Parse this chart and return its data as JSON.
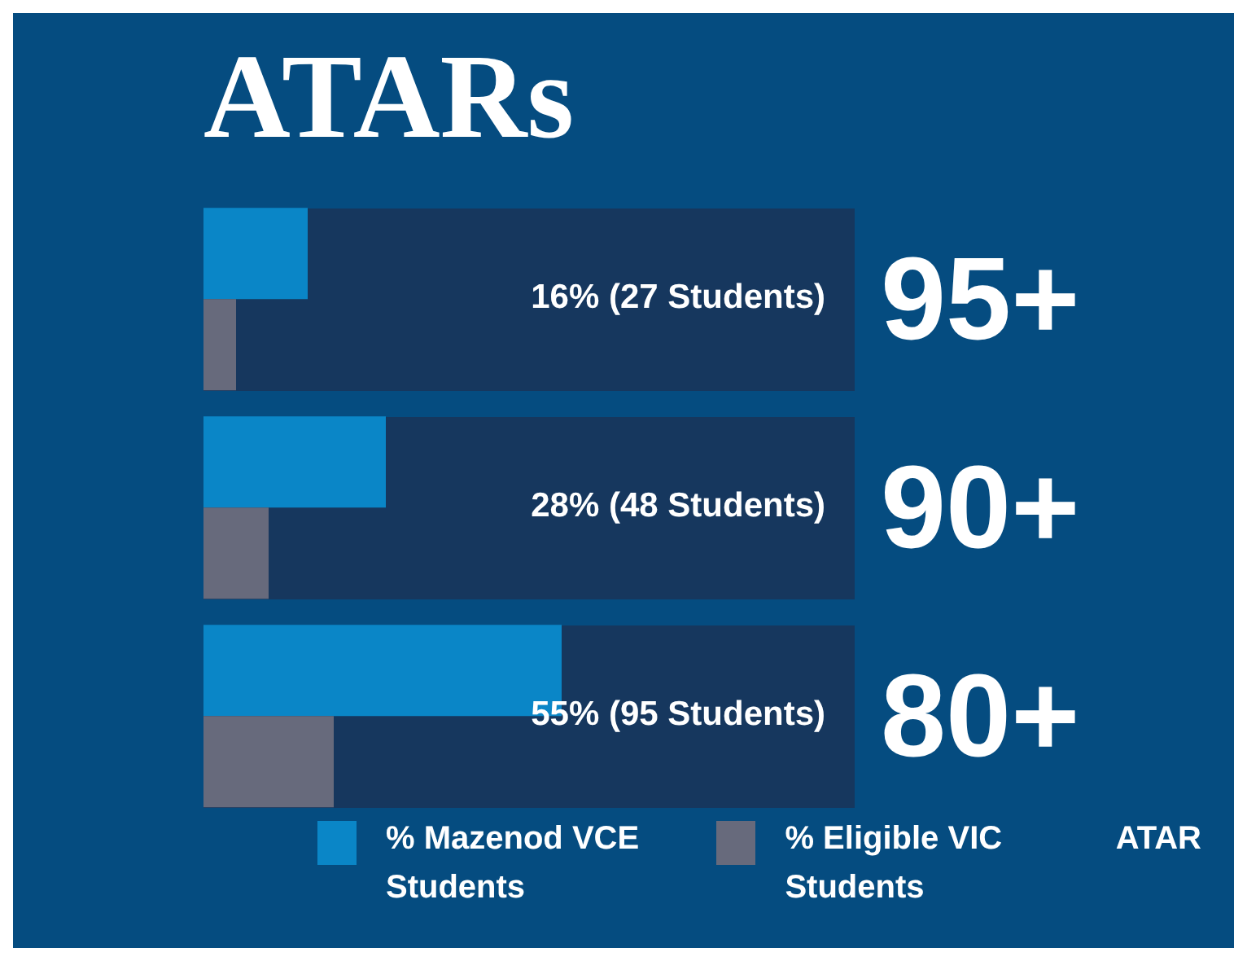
{
  "chart_data": {
    "type": "bar",
    "title": "ATARs",
    "orientation": "horizontal",
    "categories": [
      "95+",
      "90+",
      "80+"
    ],
    "series": [
      {
        "name": "% Mazenod VCE Students",
        "color": "#0a86c7",
        "values": [
          16,
          28,
          55
        ],
        "value_labels": [
          "16% (27 Students)",
          "28% (48 Students)",
          "55% (95 Students)"
        ]
      },
      {
        "name": "% Eligible VIC Students",
        "color": "#676a7c",
        "values": [
          5,
          10,
          20
        ]
      }
    ],
    "bands": [
      {
        "axis": "x",
        "from": 0,
        "to": 100,
        "color": "#16375e"
      },
      {
        "axis": "x",
        "from": 0,
        "to": 100,
        "color": "#16375e"
      },
      {
        "axis": "x",
        "from": 0,
        "to": 100,
        "color": "#16375e"
      }
    ],
    "xlim": [
      0,
      100
    ],
    "ylabel": "ATAR",
    "tick_labels": "y",
    "legend": "bottom"
  }
}
